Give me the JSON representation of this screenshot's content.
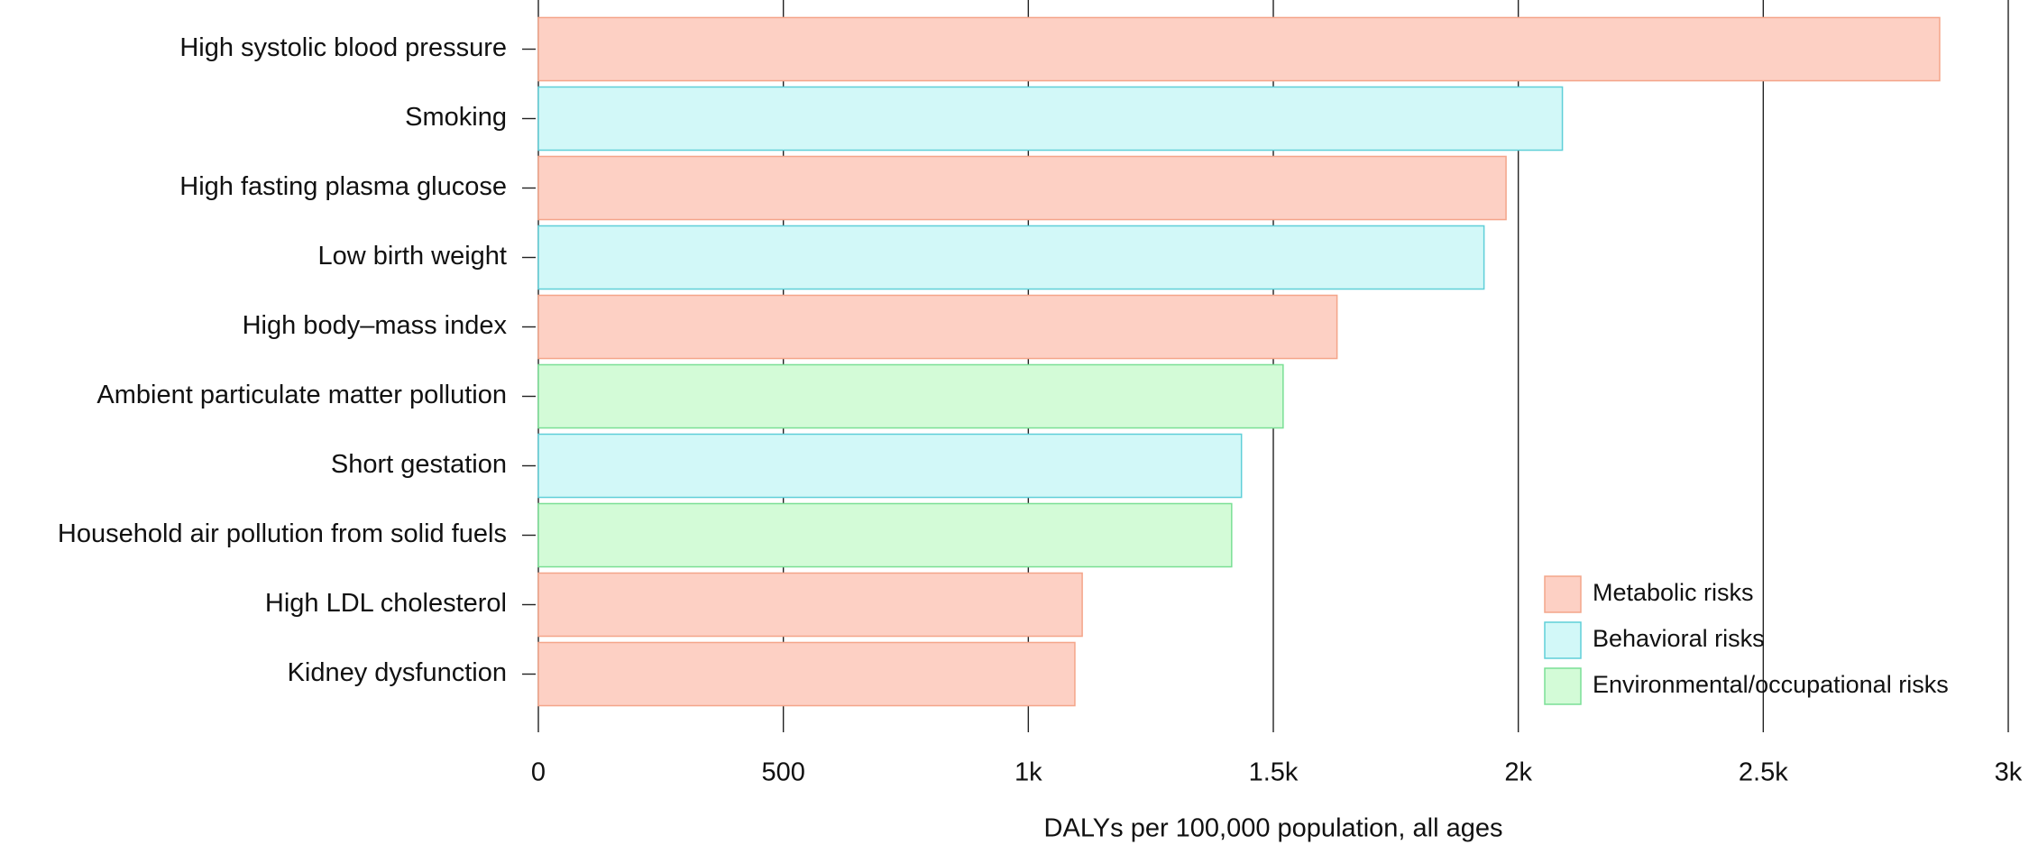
{
  "chart_data": {
    "type": "barh",
    "xlabel": "DALYs per 100,000 population, all ages",
    "categories": [
      "High systolic blood pressure",
      "Smoking",
      "High fasting plasma glucose",
      "Low birth weight",
      "High body–mass index",
      "Ambient particulate matter pollution",
      "Short gestation",
      "Household air pollution from solid fuels",
      "High LDL cholesterol",
      "Kidney dysfunction"
    ],
    "series": [
      {
        "name": "Metabolic risks",
        "color": "#fdd0c4",
        "edgecolor": "#f4a58a",
        "values": [
          2860,
          null,
          1975,
          null,
          1630,
          null,
          null,
          null,
          1110,
          1095
        ]
      },
      {
        "name": "Behavioral risks",
        "color": "#d2f8f8",
        "edgecolor": "#5fcfd8",
        "values": [
          null,
          2090,
          null,
          1930,
          null,
          null,
          1435,
          null,
          null,
          null
        ]
      },
      {
        "name": "Environmental/occupational risks",
        "color": "#d3fbd7",
        "edgecolor": "#7adf95",
        "values": [
          null,
          null,
          null,
          null,
          null,
          1520,
          null,
          1415,
          null,
          null
        ]
      }
    ],
    "xlim": [
      0,
      3000
    ],
    "xticks": [
      0,
      500,
      {
        "value": 1000,
        "label": "1k"
      },
      {
        "value": 1500,
        "label": "1.5k"
      },
      {
        "value": 2000,
        "label": "2k"
      },
      {
        "value": 2500,
        "label": "2.5k"
      },
      {
        "value": 3000,
        "label": "3k"
      }
    ],
    "grid": true,
    "legend": "lower right"
  }
}
